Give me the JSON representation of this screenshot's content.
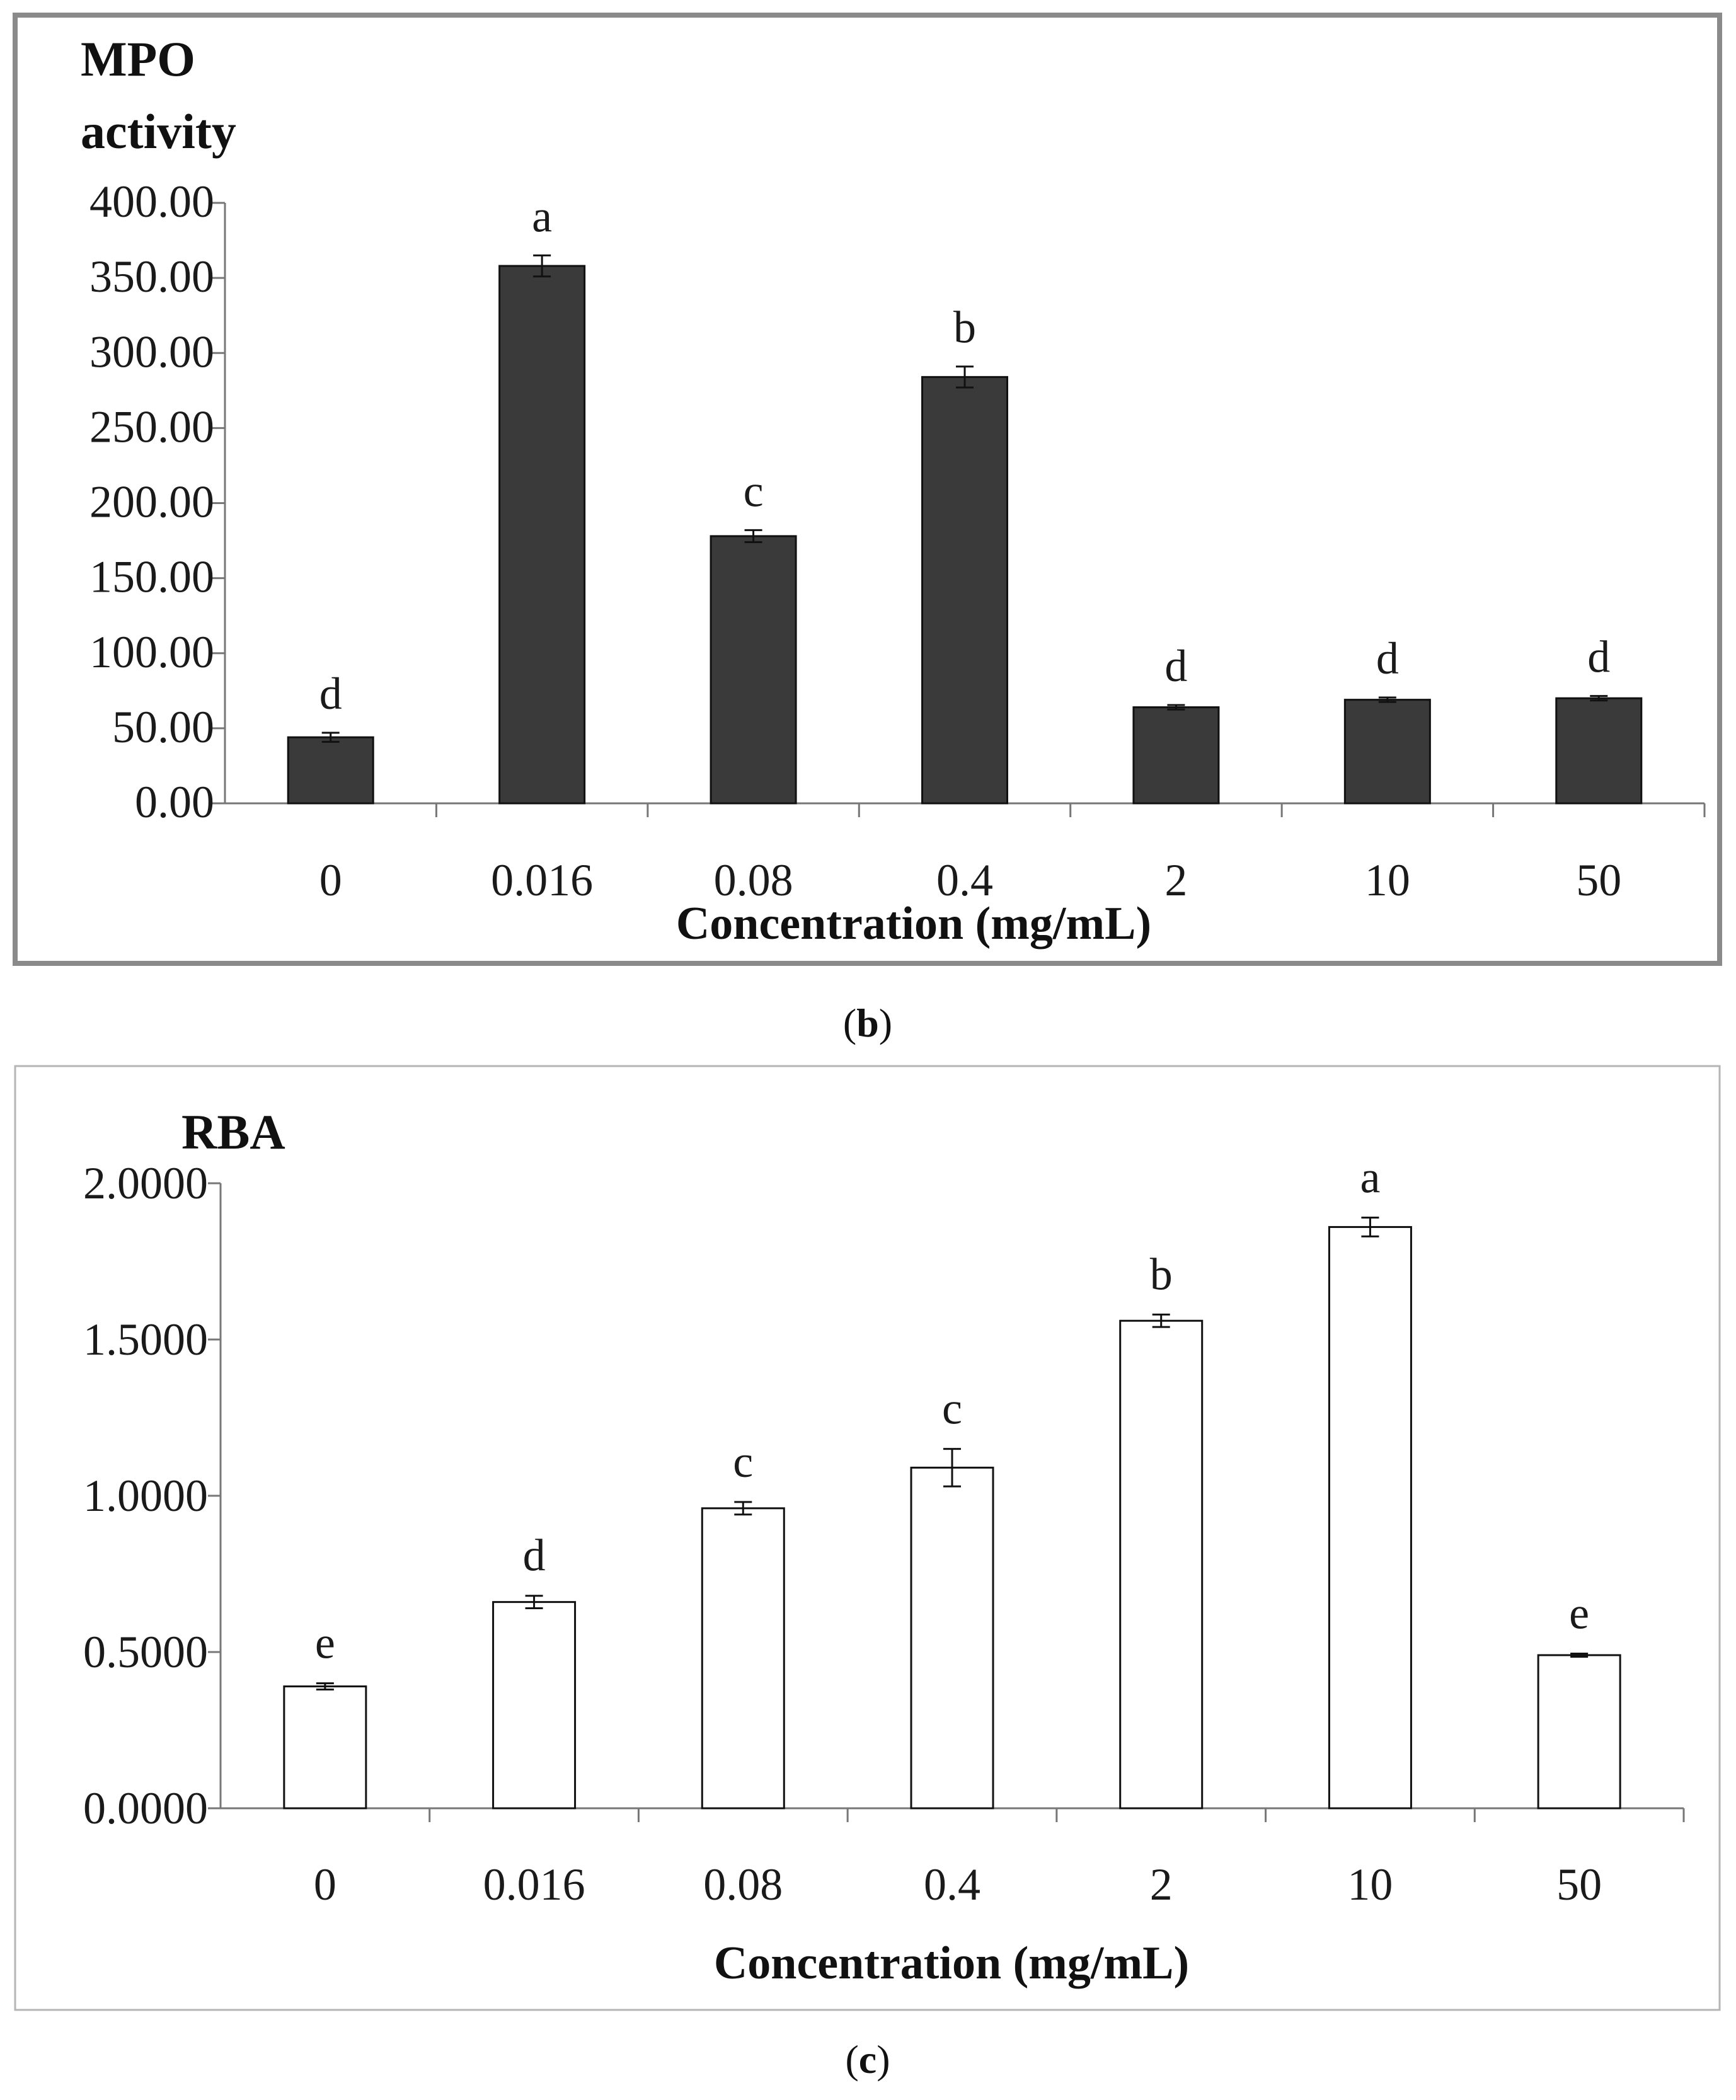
{
  "chart_data": [
    {
      "type": "bar",
      "title": "MPO activity",
      "title_lines": [
        "MPO",
        "activity"
      ],
      "xlabel": "Concentration (mg/mL)",
      "ylabel": "MPO activity",
      "categories": [
        "0",
        "0.016",
        "0.08",
        "0.4",
        "2",
        "10",
        "50"
      ],
      "values": [
        44,
        358,
        178,
        284,
        64,
        69,
        70
      ],
      "errors": [
        3,
        7,
        4,
        7,
        1.5,
        1.5,
        1.5
      ],
      "letters": [
        "d",
        "a",
        "c",
        "b",
        "d",
        "d",
        "d"
      ],
      "ylim": [
        0,
        400
      ],
      "ticks": [
        "0.00",
        "50.00",
        "100.00",
        "150.00",
        "200.00",
        "250.00",
        "300.00",
        "350.00",
        "400.00"
      ],
      "bar_color": "#3a3a3a",
      "caption_letter": "b"
    },
    {
      "type": "bar",
      "title": "RBA",
      "xlabel": "Concentration (mg/mL)",
      "ylabel": "RBA",
      "categories": [
        "0",
        "0.016",
        "0.08",
        "0.4",
        "2",
        "10",
        "50"
      ],
      "values": [
        0.39,
        0.66,
        0.96,
        1.09,
        1.56,
        1.86,
        0.49
      ],
      "errors": [
        0.01,
        0.02,
        0.02,
        0.06,
        0.02,
        0.03,
        0.005
      ],
      "letters": [
        "e",
        "d",
        "c",
        "c",
        "b",
        "a",
        "e"
      ],
      "ylim": [
        0,
        2
      ],
      "ticks": [
        "0.0000",
        "0.5000",
        "1.0000",
        "1.5000",
        "2.0000"
      ],
      "bar_color": "#ffffff",
      "caption_letter": "c"
    }
  ]
}
